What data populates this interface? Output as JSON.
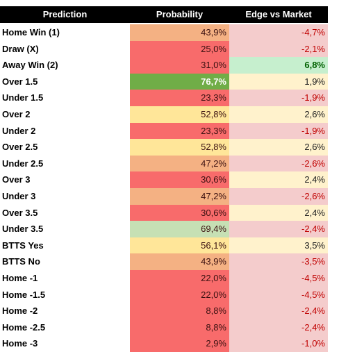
{
  "table": {
    "header": [
      "Prediction",
      "Probability",
      "Edge vs Market"
    ],
    "rows": [
      {
        "label": "Home Win (1)",
        "probability": {
          "text": "43,9%",
          "bg": "#f4b183",
          "color": "#3a1010",
          "bold": false
        },
        "edge": {
          "text": "-4,7%",
          "bg": "#f4cccc",
          "color": "#c00000",
          "bold": false
        }
      },
      {
        "label": "Draw (X)",
        "probability": {
          "text": "25,0%",
          "bg": "#f86b6b",
          "color": "#3a1010",
          "bold": false
        },
        "edge": {
          "text": "-2,1%",
          "bg": "#f4cccc",
          "color": "#c00000",
          "bold": false
        }
      },
      {
        "label": "Away Win (2)",
        "probability": {
          "text": "31,0%",
          "bg": "#f86b6b",
          "color": "#3a1010",
          "bold": false
        },
        "edge": {
          "text": "6,8%",
          "bg": "#c6efce",
          "color": "#006100",
          "bold": true
        }
      },
      {
        "label": "Over 1.5",
        "probability": {
          "text": "76,7%",
          "bg": "#70ad47",
          "color": "#ffffff",
          "bold": true
        },
        "edge": {
          "text": "1,9%",
          "bg": "#fff2cc",
          "color": "#222222",
          "bold": false
        }
      },
      {
        "label": "Under 1.5",
        "probability": {
          "text": "23,3%",
          "bg": "#f86b6b",
          "color": "#3a1010",
          "bold": false
        },
        "edge": {
          "text": "-1,9%",
          "bg": "#f4cccc",
          "color": "#c00000",
          "bold": false
        }
      },
      {
        "label": "Over 2",
        "probability": {
          "text": "52,8%",
          "bg": "#ffe699",
          "color": "#3a1010",
          "bold": false
        },
        "edge": {
          "text": "2,6%",
          "bg": "#fff2cc",
          "color": "#222222",
          "bold": false
        }
      },
      {
        "label": "Under 2",
        "probability": {
          "text": "23,3%",
          "bg": "#f86b6b",
          "color": "#3a1010",
          "bold": false
        },
        "edge": {
          "text": "-1,9%",
          "bg": "#f4cccc",
          "color": "#c00000",
          "bold": false
        }
      },
      {
        "label": "Over 2.5",
        "probability": {
          "text": "52,8%",
          "bg": "#ffe699",
          "color": "#3a1010",
          "bold": false
        },
        "edge": {
          "text": "2,6%",
          "bg": "#fff2cc",
          "color": "#222222",
          "bold": false
        }
      },
      {
        "label": "Under 2.5",
        "probability": {
          "text": "47,2%",
          "bg": "#f4b183",
          "color": "#3a1010",
          "bold": false
        },
        "edge": {
          "text": "-2,6%",
          "bg": "#f4cccc",
          "color": "#c00000",
          "bold": false
        }
      },
      {
        "label": "Over 3",
        "probability": {
          "text": "30,6%",
          "bg": "#f86b6b",
          "color": "#3a1010",
          "bold": false
        },
        "edge": {
          "text": "2,4%",
          "bg": "#fff2cc",
          "color": "#222222",
          "bold": false
        }
      },
      {
        "label": "Under 3",
        "probability": {
          "text": "47,2%",
          "bg": "#f4b183",
          "color": "#3a1010",
          "bold": false
        },
        "edge": {
          "text": "-2,6%",
          "bg": "#f4cccc",
          "color": "#c00000",
          "bold": false
        }
      },
      {
        "label": "Over 3.5",
        "probability": {
          "text": "30,6%",
          "bg": "#f86b6b",
          "color": "#3a1010",
          "bold": false
        },
        "edge": {
          "text": "2,4%",
          "bg": "#fff2cc",
          "color": "#222222",
          "bold": false
        }
      },
      {
        "label": "Under 3.5",
        "probability": {
          "text": "69,4%",
          "bg": "#c6e0b4",
          "color": "#3a1010",
          "bold": false
        },
        "edge": {
          "text": "-2,4%",
          "bg": "#f4cccc",
          "color": "#c00000",
          "bold": false
        }
      },
      {
        "label": "BTTS Yes",
        "probability": {
          "text": "56,1%",
          "bg": "#ffe699",
          "color": "#3a1010",
          "bold": false
        },
        "edge": {
          "text": "3,5%",
          "bg": "#fff2cc",
          "color": "#222222",
          "bold": false
        }
      },
      {
        "label": "BTTS No",
        "probability": {
          "text": "43,9%",
          "bg": "#f4b183",
          "color": "#3a1010",
          "bold": false
        },
        "edge": {
          "text": "-3,5%",
          "bg": "#f4cccc",
          "color": "#c00000",
          "bold": false
        }
      },
      {
        "label": "Home -1",
        "probability": {
          "text": "22,0%",
          "bg": "#f86b6b",
          "color": "#3a1010",
          "bold": false
        },
        "edge": {
          "text": "-4,5%",
          "bg": "#f4cccc",
          "color": "#c00000",
          "bold": false
        }
      },
      {
        "label": "Home -1.5",
        "probability": {
          "text": "22,0%",
          "bg": "#f86b6b",
          "color": "#3a1010",
          "bold": false
        },
        "edge": {
          "text": "-4,5%",
          "bg": "#f4cccc",
          "color": "#c00000",
          "bold": false
        }
      },
      {
        "label": "Home -2",
        "probability": {
          "text": "8,8%",
          "bg": "#f86b6b",
          "color": "#3a1010",
          "bold": false
        },
        "edge": {
          "text": "-2,4%",
          "bg": "#f4cccc",
          "color": "#c00000",
          "bold": false
        }
      },
      {
        "label": "Home -2.5",
        "probability": {
          "text": "8,8%",
          "bg": "#f86b6b",
          "color": "#3a1010",
          "bold": false
        },
        "edge": {
          "text": "-2,4%",
          "bg": "#f4cccc",
          "color": "#c00000",
          "bold": false
        }
      },
      {
        "label": "Home -3",
        "probability": {
          "text": "2,9%",
          "bg": "#f86b6b",
          "color": "#3a1010",
          "bold": false
        },
        "edge": {
          "text": "-1,0%",
          "bg": "#f4cccc",
          "color": "#c00000",
          "bold": false
        }
      }
    ]
  }
}
